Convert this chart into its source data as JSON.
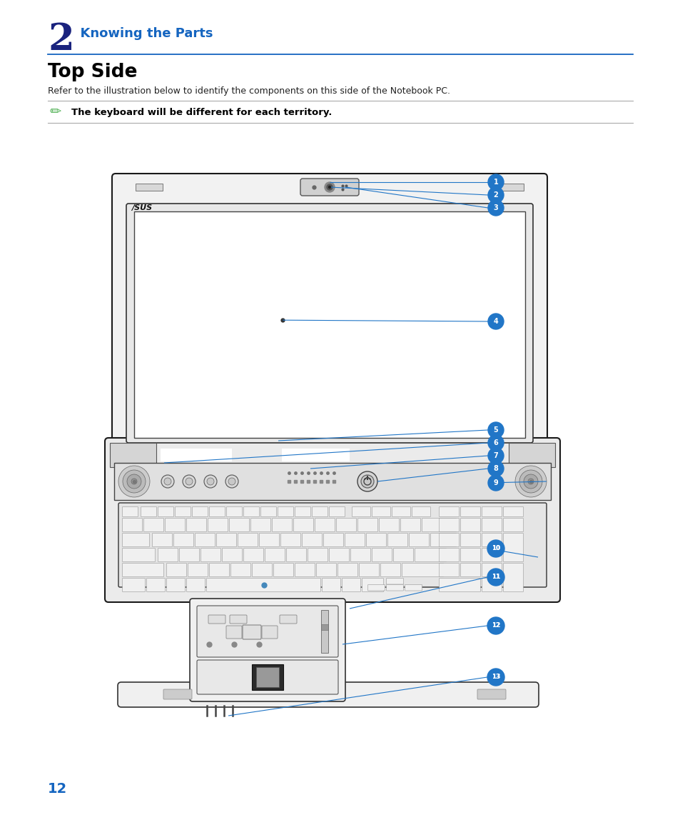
{
  "page_bg": "#ffffff",
  "chapter_num": "2",
  "chapter_num_color": "#1a237e",
  "chapter_title": "  Knowing the Parts",
  "chapter_title_color": "#1565c0",
  "section_title": "Top Side",
  "body_text": "Refer to the illustration below to identify the components on this side of the Notebook PC.",
  "note_text": "The keyboard will be different for each territory.",
  "line_color": "#1565c0",
  "page_number": "12",
  "page_number_color": "#1565c0",
  "callout_color": "#2176c7"
}
